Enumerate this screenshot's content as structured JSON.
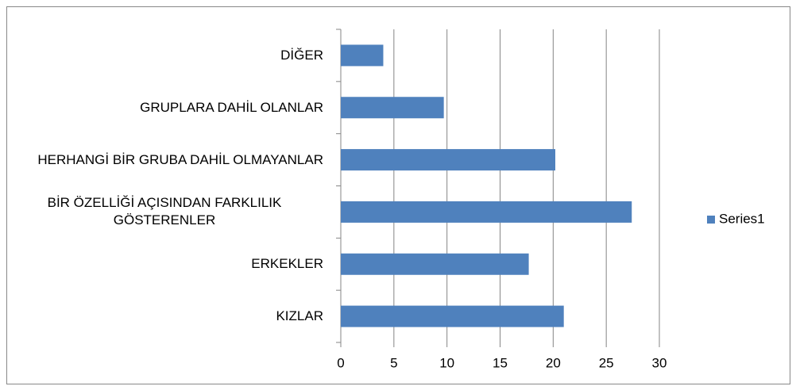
{
  "chart_data": {
    "type": "bar",
    "orientation": "horizontal",
    "categories": [
      "KIZLAR",
      "ERKEKLER",
      "BİR ÖZELLİĞİ AÇISINDAN FARKLILIK GÖSTERENLER",
      "HERHANGİ BİR GRUBA DAHİL OLMAYANLAR",
      "GRUPLARA DAHİL OLANLAR",
      "DİĞER"
    ],
    "series": [
      {
        "name": "Series1",
        "color": "#4f81bd",
        "values": [
          21,
          17.7,
          27.4,
          20.2,
          9.7,
          4
        ]
      }
    ],
    "xlim": [
      0,
      30
    ],
    "xticks": [
      0,
      5,
      10,
      15,
      20,
      25,
      30
    ],
    "grid": true,
    "legend": "right"
  }
}
